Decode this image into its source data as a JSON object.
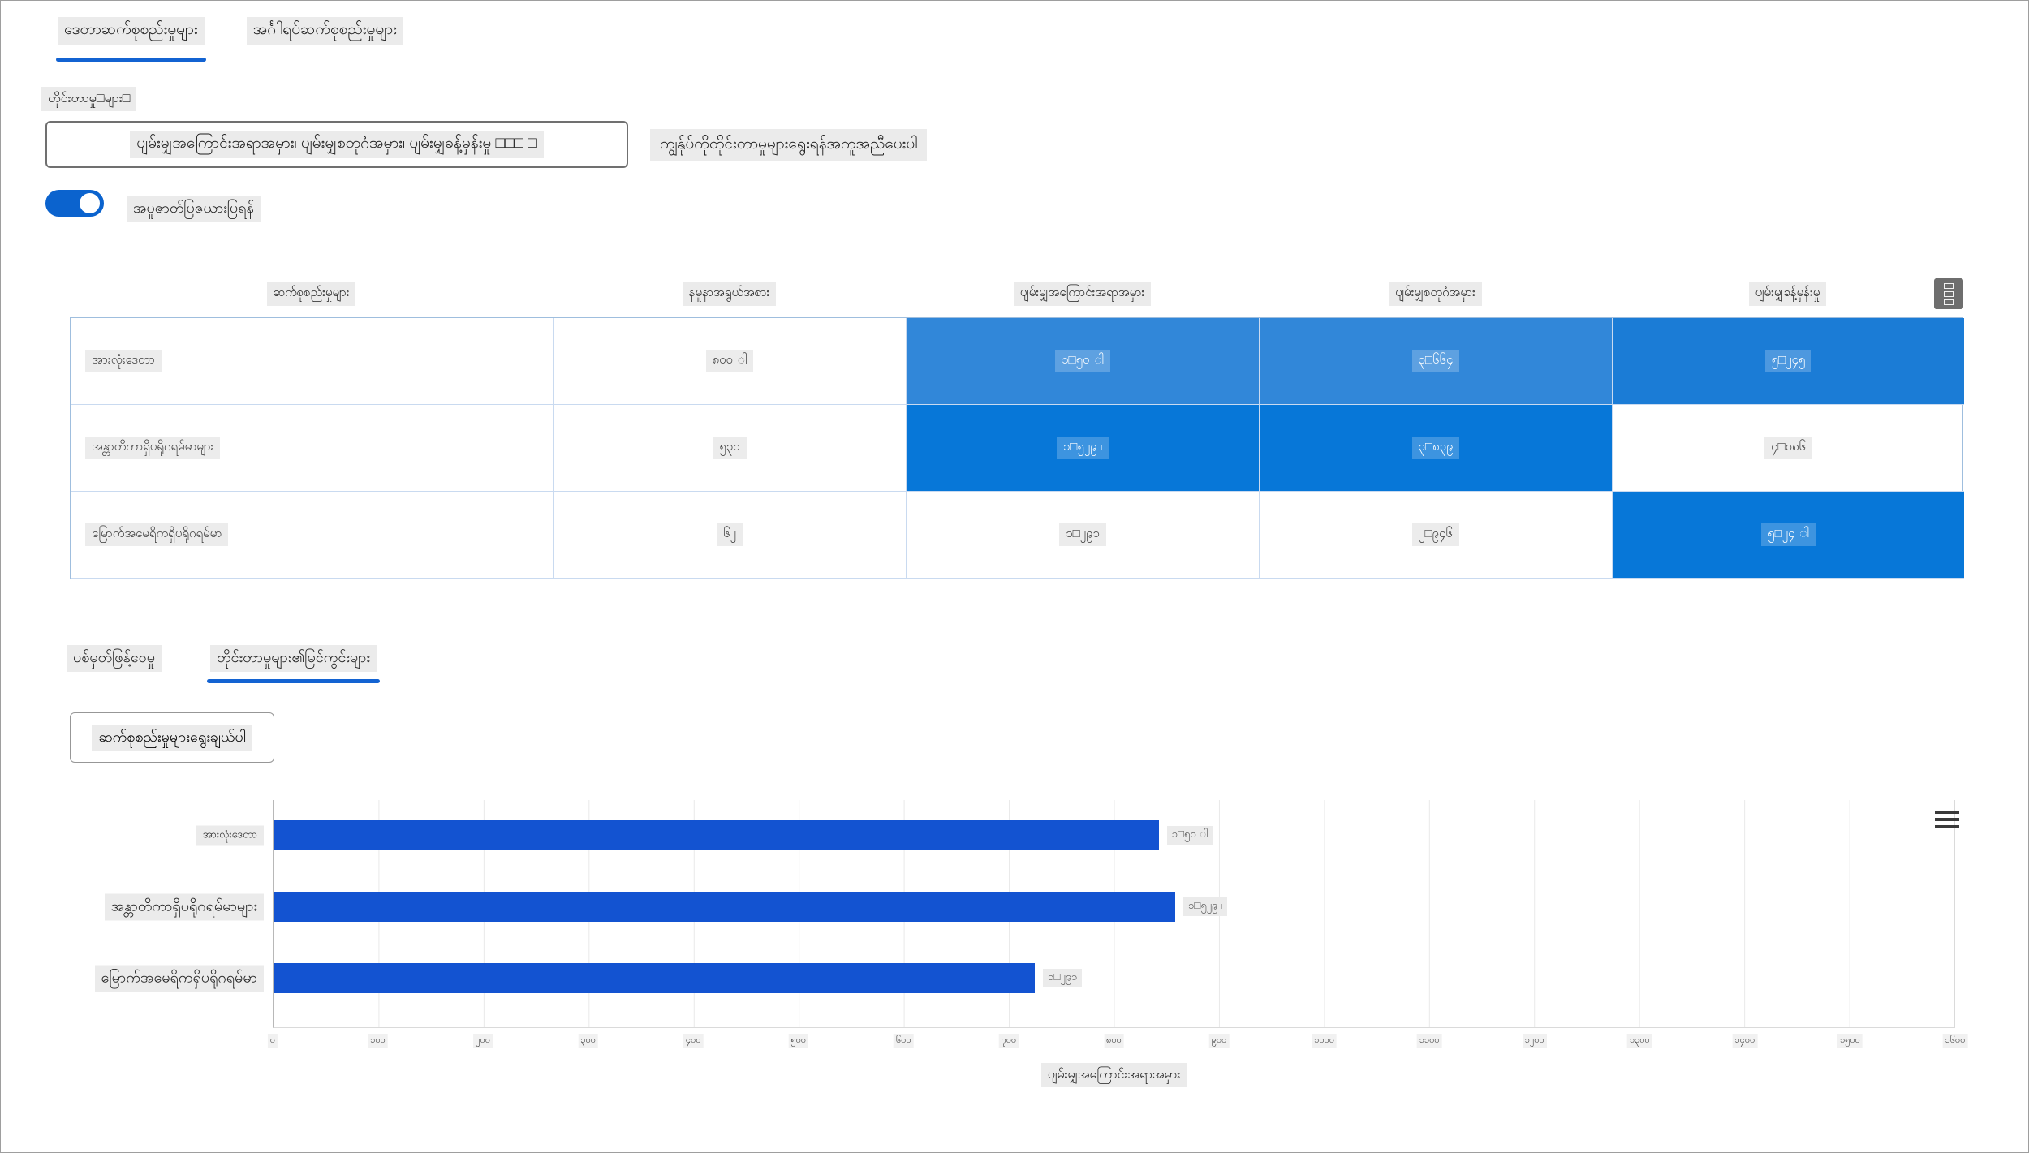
{
  "colors": {
    "tab-underline": "#1363d2",
    "toggle": "#0b63ce",
    "bar": "#1353d1",
    "cell-light": "#3187d9",
    "cell-mid": "#1b7cd6",
    "cell-dark": "#0777d8",
    "highlight-bg": "#ebebeb"
  },
  "top_tabs": {
    "tabs": [
      {
        "label": "ဒေတာဆက်စုစည်းမှုများ",
        "active": true
      },
      {
        "label": "အင်္ဂါရပ်ဆက်စုစည်းမှုများ",
        "active": false
      }
    ]
  },
  "measures": {
    "label": "တိုင်းတာမှု□များ□",
    "dropdown_value": "ပျမ်းမျှအကြောင်းအရာအမှား၊ ပျမ်းမျှစတုဂံအမှား၊ ပျမ်းမျှခန့်မှန်းမှု □□□ □",
    "help_button_label": "ကျွန်ုပ်ကိုတိုင်းတာမှုများရွေးရန်အကူအညီပေးပါ"
  },
  "heatmap_toggle": {
    "label": "အပူဇာတ်ပြဇယားပြရန်",
    "on": true
  },
  "table": {
    "headers": [
      "ဆက်စုစည်းမှုများ",
      "နမူနာအရွယ်အစား",
      "ပျမ်းမျှအကြောင်းအရာအမှား",
      "ပျမ်းမျှစတုဂံအမှား",
      "ပျမ်းမျှခန့်မှန်းမှု"
    ],
    "grid_icon": "table-view-options-icon",
    "rows": [
      {
        "name": "အားလုံးဒေတာ",
        "sample_size": "၈၀၀ ါ",
        "cells": [
          {
            "text": "၁□၅၀ ါ",
            "tone": "light"
          },
          {
            "text": "၃□၆၆၄",
            "tone": "light"
          },
          {
            "text": "၅□၂၄၅",
            "tone": "mid"
          }
        ]
      },
      {
        "name": "အန္တာတိကာရှိပရိုဂရမ်မာများ",
        "sample_size": "၅၃၁",
        "cells": [
          {
            "text": "၁□၅၂၉ ၊",
            "tone": "dark"
          },
          {
            "text": "၃□၈၃၉",
            "tone": "dark"
          },
          {
            "text": "၄□၀၈၆",
            "tone": "white"
          }
        ]
      },
      {
        "name": "မြောက်အမေရိကရှိပရိုဂရမ်မာ",
        "sample_size": "၆၂",
        "cells": [
          {
            "text": "၁□၂၉၁",
            "tone": "white"
          },
          {
            "text": "၂□၉၄၆",
            "tone": "white"
          },
          {
            "text": "၅□၂၄ ါ",
            "tone": "dark"
          }
        ]
      }
    ]
  },
  "bottom_tabs": {
    "tabs": [
      {
        "label": "ပစ်မှတ်ဖြန့်ဝေမှု",
        "active": false
      },
      {
        "label": "တိုင်းတာမှုများ၏မြင်ကွင်းများ",
        "active": true
      }
    ]
  },
  "select_cohorts_button_label": "ဆက်စုစည်းမှုများရွေးချယ်ပါ",
  "chart_data": [
    {
      "type": "bar",
      "orientation": "horizontal",
      "title": "",
      "categories": [
        "အားလုံးဒေတာ",
        "အန္တာတိကာရှိပရိုဂရမ်မာများ",
        "မြောက်အမေရိကရှိပရိုဂရမ်မာ"
      ],
      "values": [
        1501,
        1529,
        1291
      ],
      "value_labels": [
        "၁□၅၀ ါ",
        "၁□၅၂၉ ၊",
        "၁□၂၉၁"
      ],
      "xlabel": "ပျမ်းမျှအကြောင်းအရာအမှား",
      "ylabel": "",
      "xtick_labels": [
        "၀",
        "၁၀၀",
        "၂၀၀",
        "၃၀၀",
        "၄၀၀",
        "၅၀၀",
        "၆၀၀",
        "၇၀၀",
        "၈၀၀",
        "၉၀၀",
        "၁၀၀၀",
        "၁၁၀၀",
        "၁၂၀၀",
        "၁၃၀၀",
        "၁၄၀၀",
        "၁၅၀၀",
        "၁၆၀၀"
      ],
      "bar_scale_max": 2850,
      "grid": true,
      "legend": "none",
      "bar_color": "#1353d1"
    },
    {
      "type": "table",
      "columns": [
        "ဆက်စုစည်းမှုများ",
        "နမူနာအရွယ်အစား",
        "ပျမ်းမျှအကြောင်းအရာအမှား",
        "ပျမ်းမျှစတုဂံအမှား",
        "ပျမ်းမျှခန့်မှန်းမှု"
      ],
      "rows": [
        [
          "အားလုံးဒေတာ",
          800,
          1501,
          3664,
          5245
        ],
        [
          "အန္တာတိကာရှိပရိုဂရမ်မာများ",
          531,
          1529,
          3839,
          4086
        ],
        [
          "မြောက်အမေရိကရှိပရိုဂရမ်မာ",
          62,
          1291,
          2946,
          5241
        ]
      ]
    }
  ]
}
